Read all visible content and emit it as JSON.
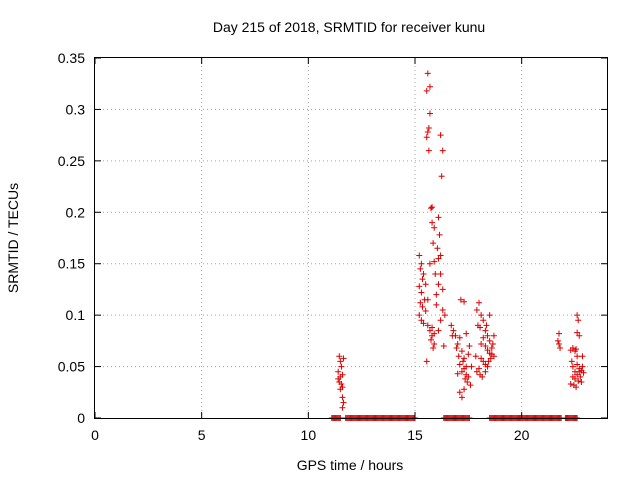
{
  "chart_data": {
    "type": "scatter",
    "title": "Day 215 of 2018, SRMTID for receiver kunu",
    "xlabel": "GPS time / hours",
    "ylabel": "SRMTID / TECUs",
    "xlim": [
      0,
      24
    ],
    "ylim": [
      0,
      0.35
    ],
    "xticks": [
      0,
      5,
      10,
      15,
      20
    ],
    "xtick_labels": [
      "0",
      "5",
      "10",
      "15",
      "20"
    ],
    "yticks": [
      0,
      0.05,
      0.1,
      0.15,
      0.2,
      0.25,
      0.3,
      0.35
    ],
    "ytick_labels": [
      "0",
      "0.05",
      "0.1",
      "0.15",
      "0.2",
      "0.25",
      "0.3",
      "0.35"
    ],
    "grid": true,
    "marker": "+",
    "series": [
      {
        "name": "kunu",
        "color": "#dd0000",
        "points": [
          [
            11.45,
            0.06
          ],
          [
            11.5,
            0.055
          ],
          [
            11.55,
            0.05
          ],
          [
            11.4,
            0.045
          ],
          [
            11.6,
            0.042
          ],
          [
            11.5,
            0.04
          ],
          [
            11.45,
            0.035
          ],
          [
            11.55,
            0.033
          ],
          [
            11.6,
            0.03
          ],
          [
            11.5,
            0.028
          ],
          [
            11.6,
            0.02
          ],
          [
            11.65,
            0.015
          ],
          [
            11.6,
            0.01
          ],
          [
            11.65,
            0.058
          ],
          [
            11.4,
            0.038
          ],
          [
            15.6,
            0.335
          ],
          [
            15.7,
            0.322
          ],
          [
            15.55,
            0.318
          ],
          [
            15.7,
            0.296
          ],
          [
            15.65,
            0.282
          ],
          [
            15.6,
            0.278
          ],
          [
            15.55,
            0.273
          ],
          [
            16.2,
            0.275
          ],
          [
            15.65,
            0.26
          ],
          [
            16.3,
            0.26
          ],
          [
            16.25,
            0.235
          ],
          [
            15.8,
            0.205
          ],
          [
            15.75,
            0.204
          ],
          [
            15.8,
            0.19
          ],
          [
            16.1,
            0.195
          ],
          [
            15.9,
            0.185
          ],
          [
            16.15,
            0.178
          ],
          [
            15.85,
            0.17
          ],
          [
            16.05,
            0.165
          ],
          [
            16.2,
            0.158
          ],
          [
            16.1,
            0.155
          ],
          [
            15.9,
            0.152
          ],
          [
            15.7,
            0.15
          ],
          [
            15.2,
            0.158
          ],
          [
            15.3,
            0.15
          ],
          [
            15.25,
            0.145
          ],
          [
            15.4,
            0.14
          ],
          [
            15.35,
            0.135
          ],
          [
            15.5,
            0.13
          ],
          [
            15.2,
            0.128
          ],
          [
            15.3,
            0.122
          ],
          [
            15.45,
            0.115
          ],
          [
            15.25,
            0.112
          ],
          [
            15.35,
            0.108
          ],
          [
            15.5,
            0.104
          ],
          [
            15.2,
            0.1
          ],
          [
            15.3,
            0.095
          ],
          [
            15.4,
            0.092
          ],
          [
            15.6,
            0.09
          ],
          [
            15.8,
            0.088
          ],
          [
            15.7,
            0.085
          ],
          [
            15.9,
            0.082
          ],
          [
            15.8,
            0.08
          ],
          [
            15.75,
            0.076
          ],
          [
            15.9,
            0.072
          ],
          [
            15.85,
            0.068
          ],
          [
            16.0,
            0.12
          ],
          [
            16.1,
            0.13
          ],
          [
            16.2,
            0.14
          ],
          [
            16.3,
            0.125
          ],
          [
            16.0,
            0.11
          ],
          [
            16.3,
            0.105
          ],
          [
            16.4,
            0.1
          ],
          [
            16.2,
            0.095
          ],
          [
            15.95,
            0.14
          ],
          [
            15.55,
            0.055
          ],
          [
            16.1,
            0.085
          ],
          [
            15.6,
            0.115
          ],
          [
            16.35,
            0.07
          ],
          [
            16.7,
            0.09
          ],
          [
            16.8,
            0.085
          ],
          [
            16.75,
            0.08
          ],
          [
            16.9,
            0.08
          ],
          [
            17.1,
            0.078
          ],
          [
            17.0,
            0.072
          ],
          [
            16.95,
            0.068
          ],
          [
            17.15,
            0.115
          ],
          [
            17.3,
            0.113
          ],
          [
            17.2,
            0.065
          ],
          [
            17.05,
            0.06
          ],
          [
            17.3,
            0.058
          ],
          [
            17.25,
            0.055
          ],
          [
            17.1,
            0.052
          ],
          [
            17.4,
            0.05
          ],
          [
            17.3,
            0.048
          ],
          [
            17.2,
            0.045
          ],
          [
            17.0,
            0.043
          ],
          [
            17.4,
            0.042
          ],
          [
            17.5,
            0.04
          ],
          [
            17.35,
            0.038
          ],
          [
            17.45,
            0.035
          ],
          [
            17.6,
            0.032
          ],
          [
            17.5,
            0.062
          ],
          [
            17.3,
            0.028
          ],
          [
            17.1,
            0.025
          ],
          [
            17.4,
            0.082
          ],
          [
            17.55,
            0.07
          ],
          [
            17.65,
            0.05
          ],
          [
            17.2,
            0.02
          ],
          [
            18.0,
            0.112
          ],
          [
            17.9,
            0.105
          ],
          [
            18.1,
            0.1
          ],
          [
            18.2,
            0.095
          ],
          [
            17.95,
            0.09
          ],
          [
            18.05,
            0.088
          ],
          [
            18.3,
            0.085
          ],
          [
            18.4,
            0.08
          ],
          [
            18.2,
            0.078
          ],
          [
            18.5,
            0.075
          ],
          [
            18.1,
            0.072
          ],
          [
            18.3,
            0.07
          ],
          [
            18.6,
            0.068
          ],
          [
            18.4,
            0.066
          ],
          [
            18.5,
            0.063
          ],
          [
            18.7,
            0.06
          ],
          [
            18.55,
            0.058
          ],
          [
            18.6,
            0.062
          ],
          [
            18.1,
            0.058
          ],
          [
            18.2,
            0.055
          ],
          [
            18.3,
            0.052
          ],
          [
            18.4,
            0.05
          ],
          [
            18.0,
            0.048
          ],
          [
            17.9,
            0.045
          ],
          [
            18.05,
            0.042
          ],
          [
            18.15,
            0.04
          ],
          [
            18.3,
            0.045
          ],
          [
            18.45,
            0.055
          ],
          [
            18.65,
            0.072
          ],
          [
            18.7,
            0.08
          ],
          [
            18.5,
            0.1
          ],
          [
            18.35,
            0.09
          ],
          [
            17.85,
            0.06
          ],
          [
            21.75,
            0.082
          ],
          [
            21.7,
            0.075
          ],
          [
            21.8,
            0.068
          ],
          [
            21.75,
            0.072
          ],
          [
            22.6,
            0.1
          ],
          [
            22.65,
            0.095
          ],
          [
            22.6,
            0.083
          ],
          [
            22.7,
            0.08
          ],
          [
            22.4,
            0.068
          ],
          [
            22.5,
            0.065
          ],
          [
            22.55,
            0.067
          ],
          [
            22.3,
            0.066
          ],
          [
            22.85,
            0.06
          ],
          [
            22.4,
            0.05
          ],
          [
            22.6,
            0.052
          ],
          [
            22.7,
            0.048
          ],
          [
            22.8,
            0.046
          ],
          [
            22.5,
            0.045
          ],
          [
            22.9,
            0.044
          ],
          [
            22.6,
            0.042
          ],
          [
            22.75,
            0.04
          ],
          [
            22.4,
            0.04
          ],
          [
            22.5,
            0.038
          ],
          [
            22.65,
            0.036
          ],
          [
            22.8,
            0.035
          ],
          [
            22.3,
            0.033
          ],
          [
            22.45,
            0.032
          ],
          [
            22.55,
            0.03
          ],
          [
            22.7,
            0.045
          ],
          [
            22.85,
            0.05
          ],
          [
            22.35,
            0.055
          ],
          [
            22.6,
            0.06
          ]
        ],
        "zero_runs": [
          [
            11.1,
            11.5
          ],
          [
            11.75,
            15.0
          ],
          [
            16.35,
            17.55
          ],
          [
            18.5,
            21.85
          ],
          [
            22.05,
            22.6
          ]
        ]
      }
    ]
  }
}
